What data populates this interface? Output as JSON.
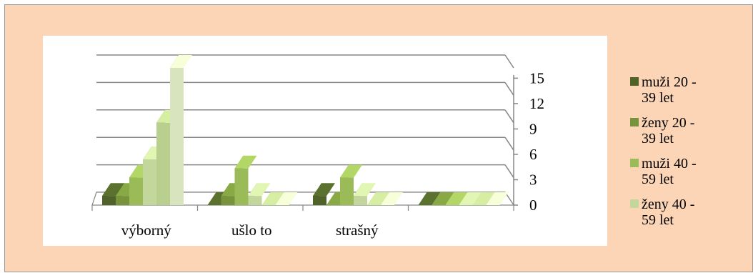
{
  "chart_data": {
    "type": "bar",
    "three_d": true,
    "categories": [
      "výborný",
      "ušlo to",
      "strašný",
      ""
    ],
    "series": [
      {
        "name": "muži 20 - 39 let",
        "values": [
          1,
          0,
          1,
          0
        ],
        "color": "#4f6228"
      },
      {
        "name": "ženy 20 - 39 let",
        "values": [
          1,
          1,
          0,
          0
        ],
        "color": "#77933c"
      },
      {
        "name": "muži 40 - 59 let",
        "values": [
          3,
          4,
          3,
          0
        ],
        "color": "#9bbb59"
      },
      {
        "name": "ženy 40 - 59 let",
        "values": [
          5,
          1,
          1,
          0
        ],
        "color": "#c3d69b"
      },
      {
        "name": "",
        "values": [
          9,
          0,
          0,
          0
        ],
        "color": "#b9cf8d"
      },
      {
        "name": "",
        "values": [
          15,
          0,
          0,
          0
        ],
        "color": "#d7e4bd"
      }
    ],
    "yticks": [
      "0",
      "3",
      "6",
      "9",
      "12",
      "15"
    ],
    "ylim": [
      0,
      15
    ],
    "grid": true,
    "legend_position": "right"
  }
}
